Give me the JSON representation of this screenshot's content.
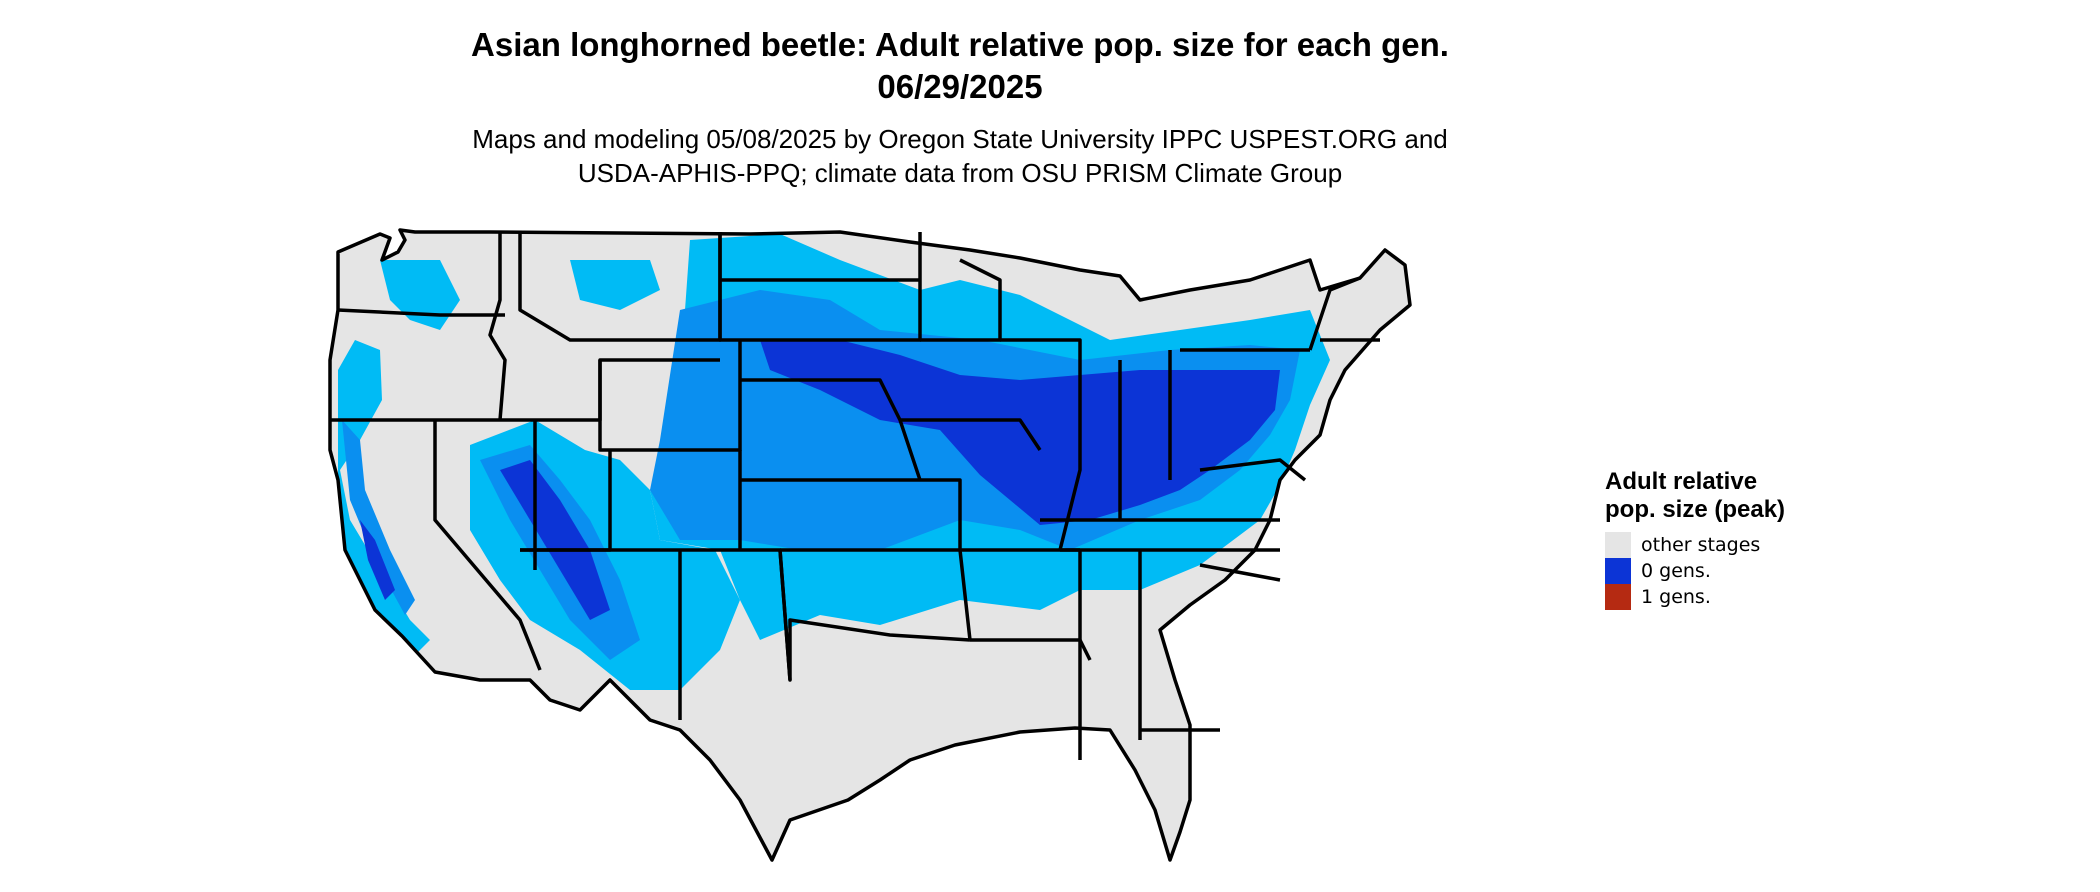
{
  "header": {
    "title_line1": "Asian longhorned beetle: Adult relative pop. size for each gen.",
    "title_line2": "06/29/2025",
    "subtitle_line1": "Maps and modeling 05/08/2025 by Oregon State University IPPC USPEST.ORG and",
    "subtitle_line2": "USDA-APHIS-PPQ; climate data from OSU PRISM Climate Group"
  },
  "legend": {
    "title": "Adult relative pop. size (peak)",
    "items": [
      {
        "label": "other stages",
        "color": "#e5e5e5"
      },
      {
        "label": "0 gens.",
        "color": "#0c34d6"
      },
      {
        "label": "1 gens.",
        "color": "#b52a12"
      }
    ]
  },
  "map_colors": {
    "background_land": "#e5e5e5",
    "light_blue": "#00bbf5",
    "mid_blue": "#0a8ff0",
    "dark_blue": "#0c34d6",
    "border": "#000000"
  }
}
